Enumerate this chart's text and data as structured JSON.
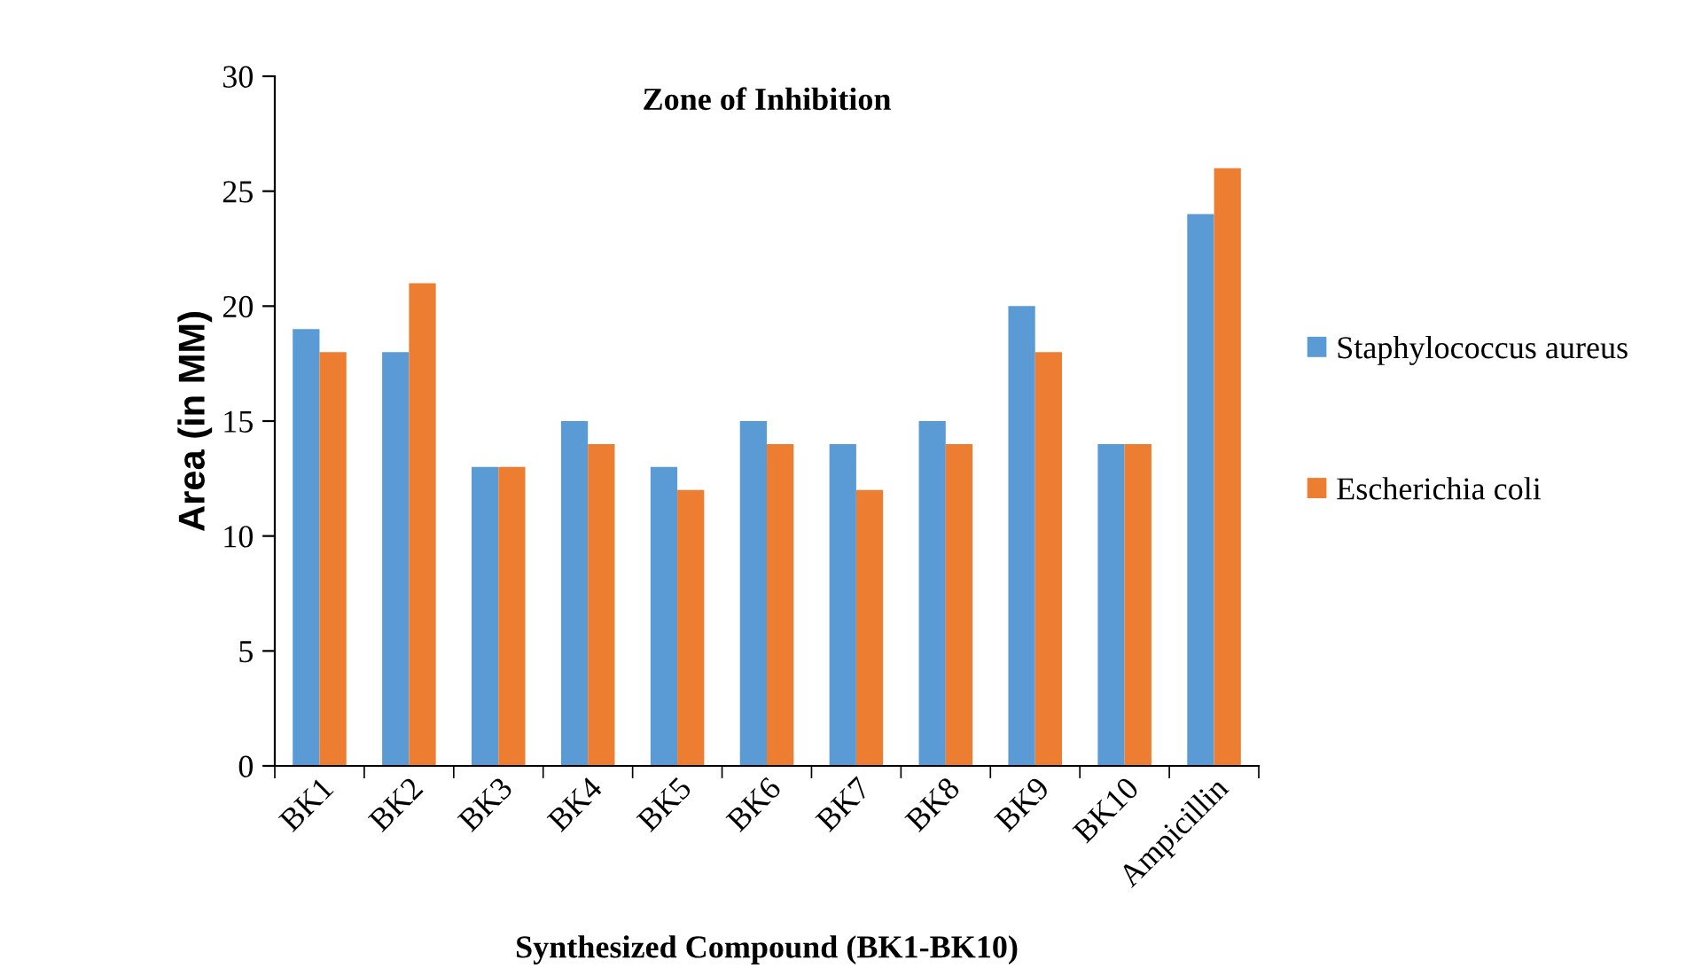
{
  "chart_data": {
    "type": "bar",
    "title": "Zone of Inhibition",
    "xlabel": "Synthesized Compound (BK1-BK10)",
    "ylabel": "Area (in MM)",
    "categories": [
      "BK1",
      "BK2",
      "BK3",
      "BK4",
      "BK5",
      "BK6",
      "BK7",
      "BK8",
      "BK9",
      "BK10",
      "Ampicillin"
    ],
    "series": [
      {
        "name": "Staphylococcus aureus",
        "color": "#5b9bd5",
        "values": [
          19,
          18,
          13,
          15,
          13,
          15,
          14,
          15,
          20,
          14,
          24
        ]
      },
      {
        "name": "Escherichia coli",
        "color": "#ed7d31",
        "values": [
          18,
          21,
          13,
          14,
          12,
          14,
          12,
          14,
          18,
          14,
          26
        ]
      }
    ],
    "ylim": [
      0,
      30
    ],
    "yticks": [
      0,
      5,
      10,
      15,
      20,
      25,
      30
    ],
    "grid": false,
    "legend": "right"
  }
}
